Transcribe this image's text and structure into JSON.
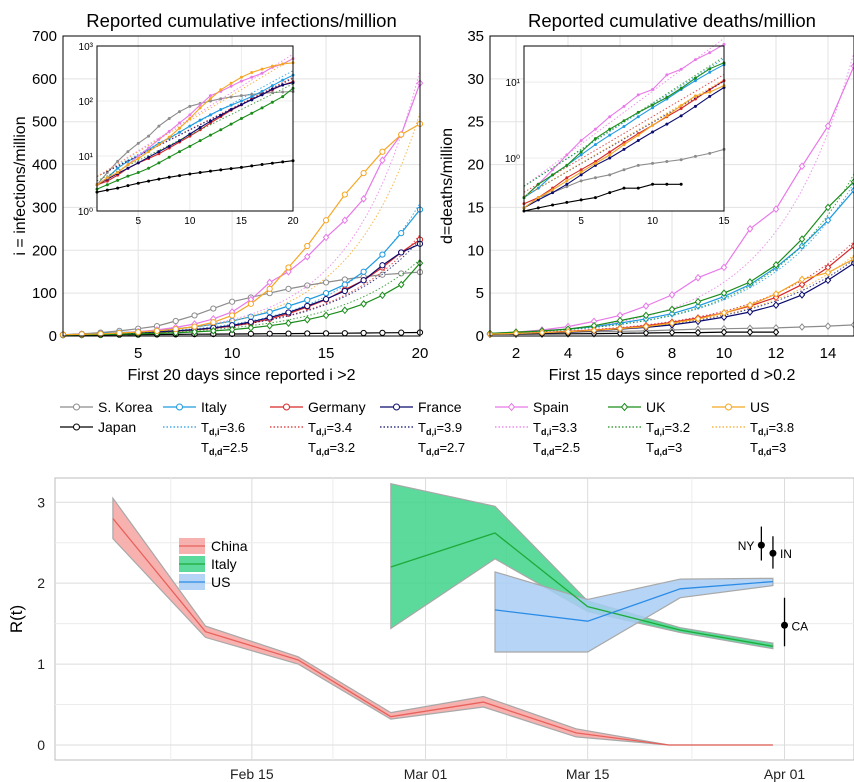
{
  "chart_data": [
    {
      "type": "line",
      "title": "Reported cumulative infections/million",
      "xlabel": "First 20 days since reported i >2",
      "ylabel": "i = infections/million",
      "xlim": [
        1,
        20
      ],
      "ylim": [
        0,
        700
      ],
      "xticks": [
        5,
        10,
        15,
        20
      ],
      "yticks": [
        0,
        100,
        200,
        300,
        400,
        500,
        600,
        700
      ],
      "grid": true,
      "series": [
        {
          "name": "S. Korea",
          "color": "#8c8c8c",
          "marker": "circle",
          "x": [
            1,
            2,
            3,
            4,
            5,
            6,
            7,
            8,
            9,
            10,
            11,
            12,
            13,
            14,
            15,
            16,
            17,
            18,
            19,
            20
          ],
          "y": [
            3,
            5,
            8,
            12,
            17,
            23,
            35,
            48,
            64,
            80,
            90,
            100,
            110,
            118,
            125,
            132,
            138,
            143,
            146,
            149
          ]
        },
        {
          "name": "Japan",
          "color": "#000000",
          "marker": "circle",
          "x": [
            1,
            2,
            3,
            4,
            5,
            6,
            7,
            8,
            9,
            10,
            11,
            12,
            13,
            14,
            15,
            16,
            17,
            18,
            19,
            20
          ],
          "y": [
            2.2,
            2.4,
            2.6,
            2.9,
            3.2,
            3.5,
            3.8,
            4.1,
            4.4,
            4.7,
            5,
            5.3,
            5.6,
            5.9,
            6.2,
            6.6,
            7,
            7.4,
            7.8,
            8.2
          ]
        },
        {
          "name": "Italy",
          "color": "#1f9be0",
          "marker": "circle",
          "x": [
            1,
            2,
            3,
            4,
            5,
            6,
            7,
            8,
            9,
            10,
            11,
            12,
            13,
            14,
            15,
            16,
            17,
            18,
            19,
            20
          ],
          "y": [
            3,
            4,
            6,
            8,
            10,
            13,
            17,
            21,
            27,
            35,
            45,
            56,
            70,
            84,
            100,
            120,
            150,
            190,
            240,
            295
          ]
        },
        {
          "name": "Germany",
          "color": "#d62728",
          "marker": "circle",
          "x": [
            1,
            2,
            3,
            4,
            5,
            6,
            7,
            8,
            9,
            10,
            11,
            12,
            13,
            14,
            15,
            16,
            17,
            18,
            19,
            20
          ],
          "y": [
            3,
            3.5,
            4.5,
            6,
            7.5,
            9,
            11,
            14,
            18,
            23,
            30,
            40,
            52,
            68,
            85,
            108,
            130,
            160,
            195,
            225
          ]
        },
        {
          "name": "France",
          "color": "#0b0b6e",
          "marker": "circle",
          "x": [
            1,
            2,
            3,
            4,
            5,
            6,
            7,
            8,
            9,
            10,
            11,
            12,
            13,
            14,
            15,
            16,
            17,
            18,
            19,
            20
          ],
          "y": [
            3,
            3.8,
            4.8,
            6,
            7.5,
            9.5,
            12,
            15,
            19,
            25,
            33,
            43,
            55,
            70,
            86,
            105,
            130,
            165,
            195,
            215
          ]
        },
        {
          "name": "Spain",
          "color": "#e879e8",
          "marker": "diamond",
          "x": [
            1,
            2,
            3,
            4,
            5,
            6,
            7,
            8,
            9,
            10,
            11,
            12,
            13,
            14,
            15,
            16,
            17,
            18,
            19,
            20
          ],
          "y": [
            3,
            4,
            5,
            7,
            10,
            14,
            20,
            28,
            40,
            56,
            85,
            125,
            150,
            185,
            230,
            270,
            320,
            410,
            470,
            590
          ]
        },
        {
          "name": "UK",
          "color": "#1a8c1a",
          "marker": "diamond",
          "x": [
            1,
            2,
            3,
            4,
            5,
            6,
            7,
            8,
            9,
            10,
            11,
            12,
            13,
            14,
            15,
            16,
            17,
            18,
            19,
            20
          ],
          "y": [
            2.5,
            3,
            3.6,
            4.3,
            5,
            6,
            7.5,
            9.5,
            12,
            15,
            19,
            24,
            30,
            38,
            48,
            60,
            75,
            95,
            120,
            170
          ]
        },
        {
          "name": "US",
          "color": "#f5a623",
          "marker": "circle",
          "x": [
            1,
            2,
            3,
            4,
            5,
            6,
            7,
            8,
            9,
            10,
            11,
            12,
            13,
            14,
            15,
            16,
            17,
            18,
            19,
            20
          ],
          "y": [
            3,
            4,
            5,
            7,
            9,
            12,
            16,
            22,
            32,
            48,
            75,
            110,
            160,
            210,
            270,
            330,
            380,
            430,
            470,
            495
          ]
        }
      ]
    },
    {
      "type": "line",
      "title": "Reported cumulative deaths/million",
      "xlabel": "First 15 days since reported d >0.2",
      "ylabel": "d=deaths/million",
      "xlim": [
        1,
        15
      ],
      "ylim": [
        0,
        35
      ],
      "xticks": [
        2,
        4,
        6,
        8,
        10,
        12,
        14
      ],
      "yticks": [
        0,
        5,
        10,
        15,
        20,
        25,
        30,
        35
      ],
      "grid": true,
      "series": [
        {
          "name": "S. Korea",
          "color": "#8c8c8c",
          "marker": "diamond",
          "x": [
            1,
            2,
            3,
            4,
            5,
            6,
            7,
            8,
            9,
            10,
            11,
            12,
            13,
            14,
            15
          ],
          "y": [
            0.22,
            0.3,
            0.35,
            0.42,
            0.5,
            0.55,
            0.6,
            0.7,
            0.8,
            0.85,
            0.9,
            0.95,
            1.05,
            1.15,
            1.3
          ]
        },
        {
          "name": "Japan",
          "color": "#000000",
          "marker": "diamond",
          "x": [
            1,
            2,
            3,
            4,
            5,
            6,
            7,
            8,
            9,
            10,
            11,
            12
          ],
          "y": [
            0.2,
            0.22,
            0.24,
            0.26,
            0.28,
            0.3,
            0.35,
            0.4,
            0.4,
            0.45,
            0.45,
            0.45
          ]
        },
        {
          "name": "Italy",
          "color": "#1f9be0",
          "marker": "diamond",
          "x": [
            1,
            2,
            3,
            4,
            5,
            6,
            7,
            8,
            9,
            10,
            11,
            12,
            13,
            14,
            15
          ],
          "y": [
            0.3,
            0.4,
            0.6,
            0.8,
            1.1,
            1.5,
            2.0,
            2.6,
            3.5,
            4.6,
            6.0,
            8.0,
            10.5,
            13.5,
            17
          ]
        },
        {
          "name": "Germany",
          "color": "#d62728",
          "marker": "diamond",
          "x": [
            1,
            2,
            3,
            4,
            5,
            6,
            7,
            8,
            9,
            10,
            11,
            12,
            13,
            14,
            15
          ],
          "y": [
            0.25,
            0.3,
            0.4,
            0.55,
            0.7,
            0.9,
            1.2,
            1.6,
            2.1,
            2.7,
            3.5,
            4.5,
            6.0,
            8.0,
            10.5
          ]
        },
        {
          "name": "France",
          "color": "#0b0b6e",
          "marker": "diamond",
          "x": [
            1,
            2,
            3,
            4,
            5,
            6,
            7,
            8,
            9,
            10,
            11,
            12,
            13,
            14,
            15
          ],
          "y": [
            0.22,
            0.28,
            0.35,
            0.45,
            0.6,
            0.8,
            1.0,
            1.3,
            1.7,
            2.2,
            2.8,
            3.6,
            4.8,
            6.5,
            8.5
          ]
        },
        {
          "name": "Spain",
          "color": "#e879e8",
          "marker": "diamond",
          "x": [
            1,
            2,
            3,
            4,
            5,
            6,
            7,
            8,
            9,
            10,
            11,
            12,
            13,
            14,
            15
          ],
          "y": [
            0.3,
            0.45,
            0.7,
            1.1,
            1.7,
            2.4,
            3.5,
            4.8,
            6.8,
            8,
            12.5,
            14.8,
            19.8,
            24.5,
            31.5
          ]
        },
        {
          "name": "UK",
          "color": "#1a8c1a",
          "marker": "diamond",
          "x": [
            1,
            2,
            3,
            4,
            5,
            6,
            7,
            8,
            9,
            10,
            11,
            12,
            13,
            14,
            15
          ],
          "y": [
            0.3,
            0.45,
            0.6,
            0.8,
            1.2,
            1.8,
            2.4,
            3.1,
            4.0,
            5.0,
            6.3,
            8.3,
            11.3,
            15.0,
            18
          ]
        },
        {
          "name": "US",
          "color": "#f5a623",
          "marker": "diamond",
          "x": [
            1,
            2,
            3,
            4,
            5,
            6,
            7,
            8,
            9,
            10,
            11,
            12,
            13,
            14,
            15
          ],
          "y": [
            0.22,
            0.3,
            0.38,
            0.5,
            0.65,
            0.85,
            1.1,
            1.5,
            2.0,
            2.7,
            3.6,
            4.9,
            6.6,
            7.4,
            9
          ]
        }
      ]
    },
    {
      "type": "line",
      "title": "",
      "xlabel": "",
      "ylabel": "R(t)",
      "ylim": [
        0,
        3.3
      ],
      "yticks": [
        0,
        1,
        2,
        3
      ],
      "xticks": [
        "Feb 15",
        "Mar 01",
        "Mar 15",
        "Apr 01"
      ],
      "grid": true,
      "series": [
        {
          "name": "China",
          "color": "#e8615b",
          "fill": "#f6a5a2",
          "x": [
            "2020-02-03",
            "2020-02-11",
            "2020-02-19",
            "2020-02-27",
            "2020-03-06",
            "2020-03-14",
            "2020-03-22",
            "2020-03-31"
          ],
          "y": [
            2.8,
            1.4,
            1.05,
            0.35,
            0.53,
            0.15,
            0.0,
            0.0
          ],
          "lower": [
            2.55,
            1.33,
            1.0,
            0.32,
            0.47,
            0.1,
            0.0,
            0.0
          ],
          "upper": [
            3.05,
            1.47,
            1.09,
            0.4,
            0.6,
            0.2,
            0.0,
            0.0
          ]
        },
        {
          "name": "Italy",
          "color": "#1faa3a",
          "fill": "#3ed489",
          "x": [
            "2020-02-27",
            "2020-03-07",
            "2020-03-15",
            "2020-03-23",
            "2020-03-31"
          ],
          "y": [
            2.2,
            2.62,
            1.71,
            1.42,
            1.22
          ],
          "lower": [
            1.44,
            2.3,
            1.65,
            1.39,
            1.19
          ],
          "upper": [
            3.23,
            2.95,
            1.78,
            1.45,
            1.26
          ]
        },
        {
          "name": "US",
          "color": "#2b8ce6",
          "fill": "#a9cdf5",
          "x": [
            "2020-03-07",
            "2020-03-15",
            "2020-03-23",
            "2020-03-31"
          ],
          "y": [
            1.67,
            1.53,
            1.93,
            2.02
          ],
          "lower": [
            1.15,
            1.15,
            1.82,
            1.97
          ],
          "upper": [
            2.14,
            1.8,
            2.05,
            2.06
          ]
        }
      ],
      "points": [
        {
          "label": "NY",
          "x": "2020-03-30",
          "y": 2.47,
          "lower": 2.28,
          "upper": 2.7
        },
        {
          "label": "IN",
          "x": "2020-03-31",
          "y": 2.37,
          "lower": 2.18,
          "upper": 2.58
        },
        {
          "label": "CA",
          "x": "2020-04-01",
          "y": 1.48,
          "lower": 1.22,
          "upper": 1.82
        }
      ]
    }
  ],
  "legend_top": {
    "entries": [
      {
        "country": "S. Korea",
        "color": "#8c8c8c",
        "marker": "circle"
      },
      {
        "country": "Japan",
        "color": "#000000",
        "marker": "circle"
      },
      {
        "country": "Italy",
        "color": "#1f9be0",
        "marker": "circle",
        "td_i": "3.6",
        "td_d": "2.5"
      },
      {
        "country": "Germany",
        "color": "#d62728",
        "marker": "circle",
        "td_i": "3.4",
        "td_d": "3.2"
      },
      {
        "country": "France",
        "color": "#0b0b6e",
        "marker": "circle",
        "td_i": "3.9",
        "td_d": "2.7"
      },
      {
        "country": "Spain",
        "color": "#e879e8",
        "marker": "diamond",
        "td_i": "3.3",
        "td_d": "2.5"
      },
      {
        "country": "UK",
        "color": "#1a8c1a",
        "marker": "diamond",
        "td_i": "3.2",
        "td_d": "3"
      },
      {
        "country": "US",
        "color": "#f5a623",
        "marker": "circle",
        "td_i": "3.8",
        "td_d": "3"
      }
    ]
  },
  "legend_bottom": {
    "entries": [
      {
        "name": "China",
        "color": "#e8615b",
        "fill": "#f6a5a2"
      },
      {
        "name": "Italy",
        "color": "#1faa3a",
        "fill": "#3ed489"
      },
      {
        "name": "US",
        "color": "#2b8ce6",
        "fill": "#a9cdf5"
      }
    ]
  },
  "insets": [
    {
      "ylim": [
        1,
        1000
      ],
      "yscale": "log",
      "yticks": [
        "10⁰",
        "10¹",
        "10²",
        "10³"
      ],
      "xticks": [
        5,
        10,
        15,
        20
      ]
    },
    {
      "ylim": [
        0.2,
        30
      ],
      "yscale": "log",
      "yticks": [
        "10⁰",
        "10¹"
      ],
      "xticks": [
        5,
        10,
        15
      ]
    }
  ]
}
